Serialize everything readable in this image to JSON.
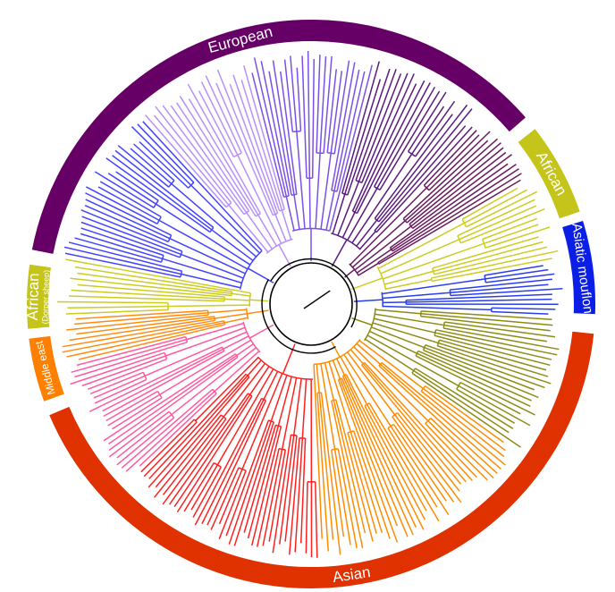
{
  "groups": [
    {
      "label": "European",
      "sublabel": "",
      "color": "#660066",
      "start": -79,
      "end": 49,
      "dir": "cw",
      "size": 17
    },
    {
      "label": "African",
      "sublabel": "",
      "color": "#c4c41a",
      "start": 52,
      "end": 71,
      "dir": "cw",
      "size": 17
    },
    {
      "label": "Asiatic mouflon",
      "sublabel": "",
      "color": "#0a1ee6",
      "start": 73,
      "end": 92,
      "dir": "cw",
      "size": 15
    },
    {
      "label": "Asian",
      "sublabel": "",
      "color": "#e03200",
      "start": 96,
      "end": 247,
      "dir": "ccw",
      "size": 17
    },
    {
      "label": "Middle east",
      "sublabel": "",
      "color": "#ff7f00",
      "start": 250,
      "end": 263,
      "dir": "ccw",
      "size": 12
    },
    {
      "label": "African",
      "sublabel": "(Dorper sheep)",
      "color": "#c4c41a",
      "start": 265,
      "end": 278,
      "dir": "ccw",
      "size": 17
    }
  ],
  "clades": [
    {
      "from": 43,
      "to": 60,
      "color": "#6a1a5e",
      "tips": 14
    },
    {
      "from": 60,
      "to": 80,
      "color": "#cccc22",
      "tips": 14
    },
    {
      "from": 80,
      "to": 93,
      "color": "#2a3ef0",
      "tips": 11
    },
    {
      "from": 93,
      "to": 125,
      "color": "#8c8c14",
      "tips": 24
    },
    {
      "from": 125,
      "to": 178,
      "color": "#ff8c00",
      "tips": 40
    },
    {
      "from": 178,
      "to": 226,
      "color": "#ff2020",
      "tips": 38
    },
    {
      "from": 226,
      "to": 256,
      "color": "#ff5aa0",
      "tips": 24
    },
    {
      "from": 256,
      "to": 267,
      "color": "#ff8c10",
      "tips": 9
    },
    {
      "from": 267,
      "to": 281,
      "color": "#cccc22",
      "tips": 10
    },
    {
      "from": 281,
      "to": 318,
      "color": "#4444ff",
      "tips": 28
    },
    {
      "from": 318,
      "to": 345,
      "color": "#b890f8",
      "tips": 18
    },
    {
      "from": 345,
      "to": 375,
      "color": "#7a50e8",
      "tips": 22
    },
    {
      "from": 375,
      "to": 403,
      "color": "#5a1a80",
      "tips": 20
    }
  ]
}
